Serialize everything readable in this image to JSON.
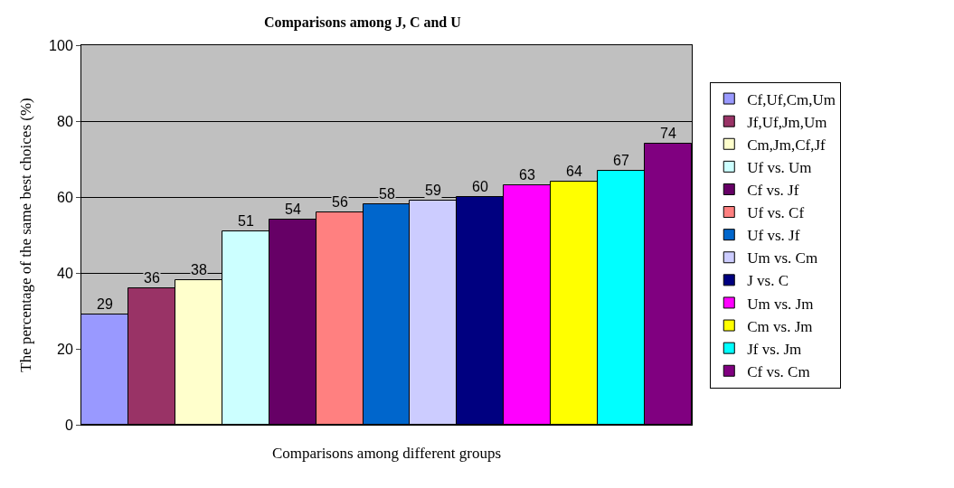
{
  "chart_data": {
    "type": "bar",
    "title": "Comparisons among J, C and U",
    "xlabel": "Comparisons among different groups",
    "ylabel": "The percentage of the same best choices (%)",
    "categories": [
      null
    ],
    "series": [
      {
        "name": "Cf,Uf,Cm,Um",
        "color": "#9999ff",
        "values": [
          29
        ]
      },
      {
        "name": "Jf,Uf,Jm,Um",
        "color": "#993366",
        "values": [
          36
        ]
      },
      {
        "name": "Cm,Jm,Cf,Jf",
        "color": "#ffffcc",
        "values": [
          38
        ]
      },
      {
        "name": "Uf vs. Um",
        "color": "#ccffff",
        "values": [
          51
        ]
      },
      {
        "name": "Cf vs. Jf",
        "color": "#660066",
        "values": [
          54
        ]
      },
      {
        "name": "Uf vs. Cf",
        "color": "#ff8080",
        "values": [
          56
        ]
      },
      {
        "name": "Uf vs. Jf",
        "color": "#0066cc",
        "values": [
          58
        ]
      },
      {
        "name": "Um vs. Cm",
        "color": "#ccccff",
        "values": [
          59
        ]
      },
      {
        "name": "J vs. C",
        "color": "#000080",
        "values": [
          60
        ]
      },
      {
        "name": "Um vs. Jm",
        "color": "#ff00ff",
        "values": [
          63
        ]
      },
      {
        "name": "Cm vs. Jm",
        "color": "#ffff00",
        "values": [
          64
        ]
      },
      {
        "name": "Jf vs. Jm",
        "color": "#00ffff",
        "values": [
          67
        ]
      },
      {
        "name": "Cf vs. Cm",
        "color": "#800080",
        "values": [
          74
        ]
      }
    ],
    "ylim": [
      0,
      100
    ],
    "yticks": [
      0,
      20,
      40,
      60,
      80,
      100
    ],
    "grid": "y",
    "legend": "right",
    "data_labels": true,
    "tick_labels": "y"
  }
}
